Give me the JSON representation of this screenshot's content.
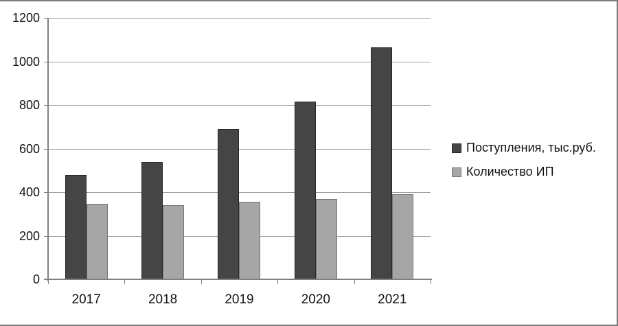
{
  "chart_data": {
    "type": "bar",
    "title": "",
    "xlabel": "",
    "ylabel": "",
    "categories": [
      "2017",
      "2018",
      "2019",
      "2020",
      "2021"
    ],
    "series": [
      {
        "name": "Поступления, тыс.руб.",
        "values": [
          480,
          540,
          690,
          815,
          1065
        ],
        "color": "#454545",
        "border_color": "#262626"
      },
      {
        "name": "Количество ИП",
        "values": [
          345,
          340,
          355,
          370,
          390
        ],
        "color": "#a6a6a6",
        "border_color": "#757575"
      }
    ],
    "ylim": [
      0,
      1200
    ],
    "ytick_step": 200,
    "y_tick_labels": [
      "0",
      "200",
      "400",
      "600",
      "800",
      "1000",
      "1200"
    ],
    "grid": true,
    "legend_position": "right",
    "colors": {
      "gridline": "#a0a0a0",
      "axis": "#7f7f7f",
      "frame_border": "#7a7a7a",
      "text": "#111111"
    }
  }
}
